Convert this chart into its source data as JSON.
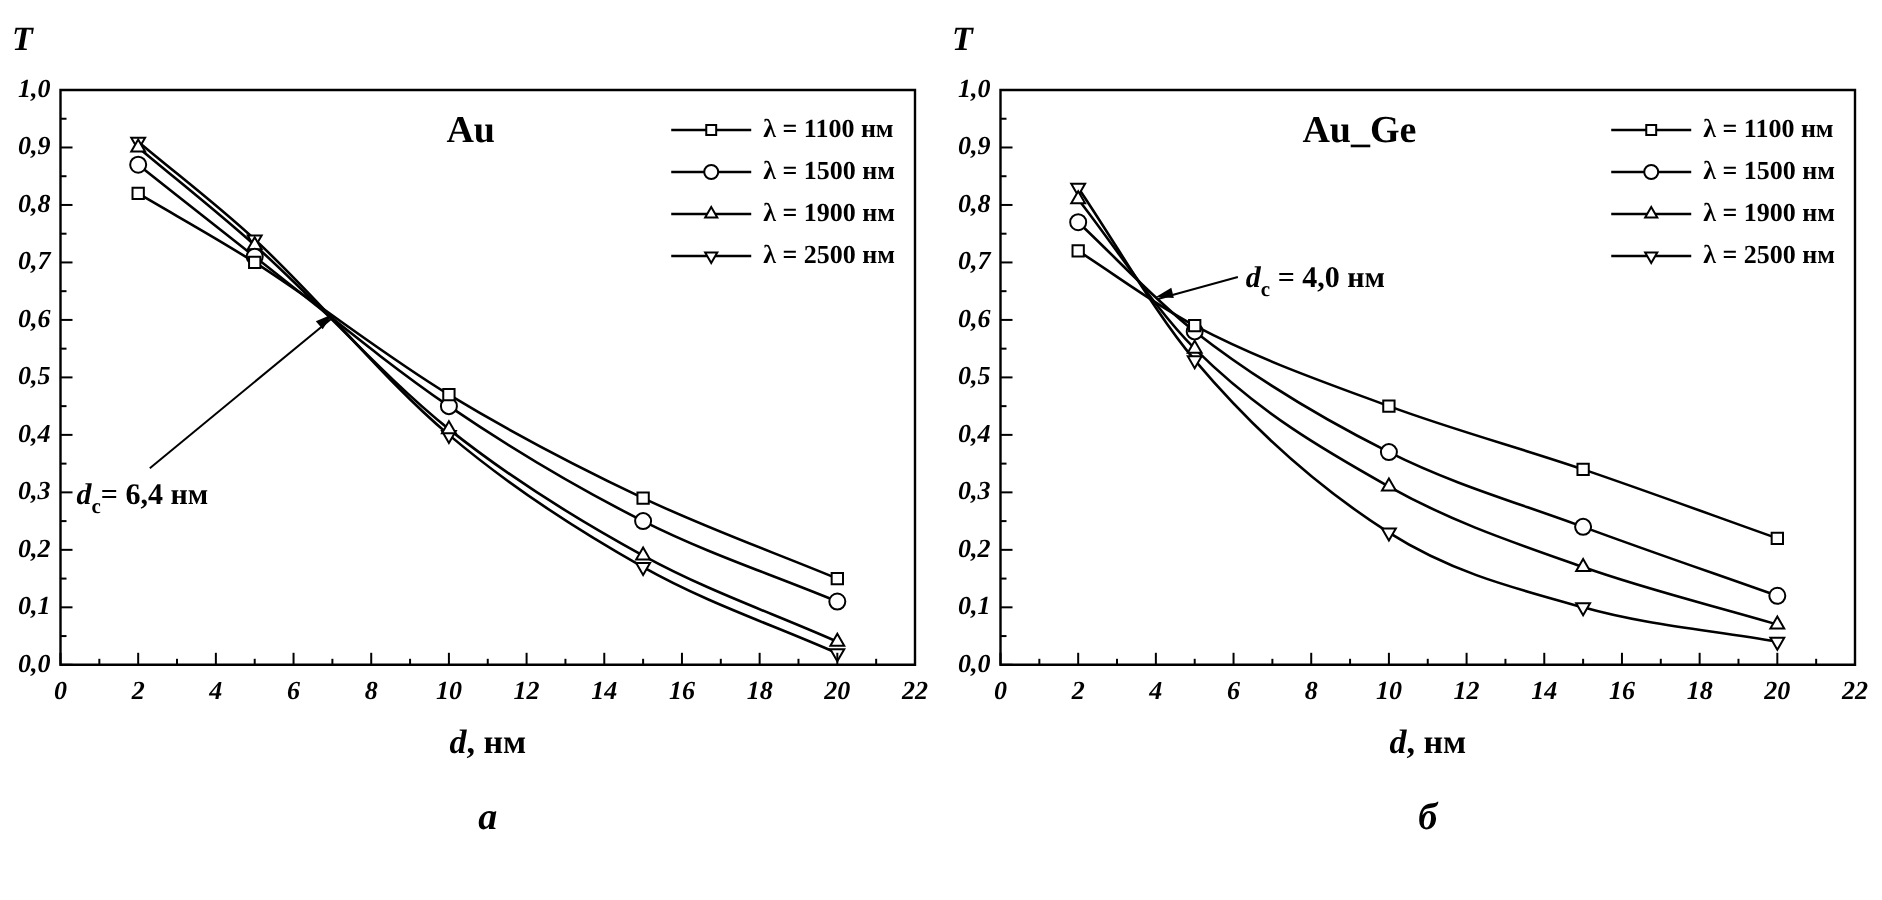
{
  "chart_data": [
    {
      "type": "line",
      "title": "Au",
      "xlabel": "d, нм",
      "ylabel": "T",
      "legend": "top right",
      "grid": false,
      "x": [
        2,
        5,
        10,
        15,
        20
      ],
      "xlim": [
        0,
        22
      ],
      "xticks": [
        0,
        2,
        4,
        6,
        8,
        10,
        12,
        14,
        16,
        18,
        20,
        22
      ],
      "ylim": [
        0,
        1
      ],
      "yticks": [
        {
          "value": 0,
          "label": "0,0"
        },
        {
          "value": 0.1,
          "label": "0,1"
        },
        {
          "value": 0.2,
          "label": "0,2"
        },
        {
          "value": 0.3,
          "label": "0,3"
        },
        {
          "value": 0.4,
          "label": "0,4"
        },
        {
          "value": 0.5,
          "label": "0,5"
        },
        {
          "value": 0.6,
          "label": "0,6"
        },
        {
          "value": 0.7,
          "label": "0,7"
        },
        {
          "value": 0.8,
          "label": "0,8"
        },
        {
          "value": 0.9,
          "label": "0,9"
        },
        {
          "value": 1,
          "label": "1,0"
        }
      ],
      "series": [
        {
          "name": "λ = 1100 нм",
          "color": "#000000",
          "marker": "square",
          "values": [
            0.82,
            0.7,
            0.47,
            0.29,
            0.15
          ]
        },
        {
          "name": "λ = 1500 нм",
          "color": "#000000",
          "marker": "circle",
          "values": [
            0.87,
            0.71,
            0.45,
            0.25,
            0.11
          ]
        },
        {
          "name": "λ = 1900 нм",
          "color": "#000000",
          "marker": "triangle",
          "values": [
            0.9,
            0.73,
            0.41,
            0.19,
            0.04
          ]
        },
        {
          "name": "λ = 2500 нм",
          "color": "#000000",
          "marker": "triangle-down",
          "values": [
            0.91,
            0.74,
            0.4,
            0.17,
            0.02
          ]
        }
      ],
      "annotations": [
        {
          "text": "d$_{c}$= 6,4 нм",
          "x": 7,
          "y": 0.61
        },
        "а"
      ]
    },
    {
      "type": "line",
      "title": "Au_Ge",
      "xlabel": "d, нм",
      "ylabel": "T",
      "legend": "top right",
      "grid": false,
      "x": [
        2,
        5,
        10,
        15,
        20
      ],
      "xlim": [
        0,
        22
      ],
      "xticks": [
        0,
        2,
        4,
        6,
        8,
        10,
        12,
        14,
        16,
        18,
        20,
        22
      ],
      "ylim": [
        0,
        1
      ],
      "yticks": [
        {
          "value": 0,
          "label": "0,0"
        },
        {
          "value": 0.1,
          "label": "0,1"
        },
        {
          "value": 0.2,
          "label": "0,2"
        },
        {
          "value": 0.3,
          "label": "0,3"
        },
        {
          "value": 0.4,
          "label": "0,4"
        },
        {
          "value": 0.5,
          "label": "0,5"
        },
        {
          "value": 0.6,
          "label": "0,6"
        },
        {
          "value": 0.7,
          "label": "0,7"
        },
        {
          "value": 0.8,
          "label": "0,8"
        },
        {
          "value": 0.9,
          "label": "0,9"
        },
        {
          "value": 1,
          "label": "1,0"
        }
      ],
      "series": [
        {
          "name": "λ = 1100 нм",
          "color": "#000000",
          "marker": "square",
          "values": [
            0.72,
            0.59,
            0.45,
            0.34,
            0.22
          ]
        },
        {
          "name": "λ = 1500 нм",
          "color": "#000000",
          "marker": "circle",
          "values": [
            0.77,
            0.58,
            0.37,
            0.24,
            0.12
          ]
        },
        {
          "name": "λ = 1900 нм",
          "color": "#000000",
          "marker": "triangle",
          "values": [
            0.81,
            0.55,
            0.31,
            0.17,
            0.07
          ]
        },
        {
          "name": "λ = 2500 нм",
          "color": "#000000",
          "marker": "triangle-down",
          "values": [
            0.83,
            0.53,
            0.23,
            0.1,
            0.04
          ]
        }
      ],
      "annotations": [
        {
          "text": "d$_{c}$ = 4,0 нм",
          "x": 4,
          "y": 0.64
        },
        "б"
      ]
    }
  ]
}
